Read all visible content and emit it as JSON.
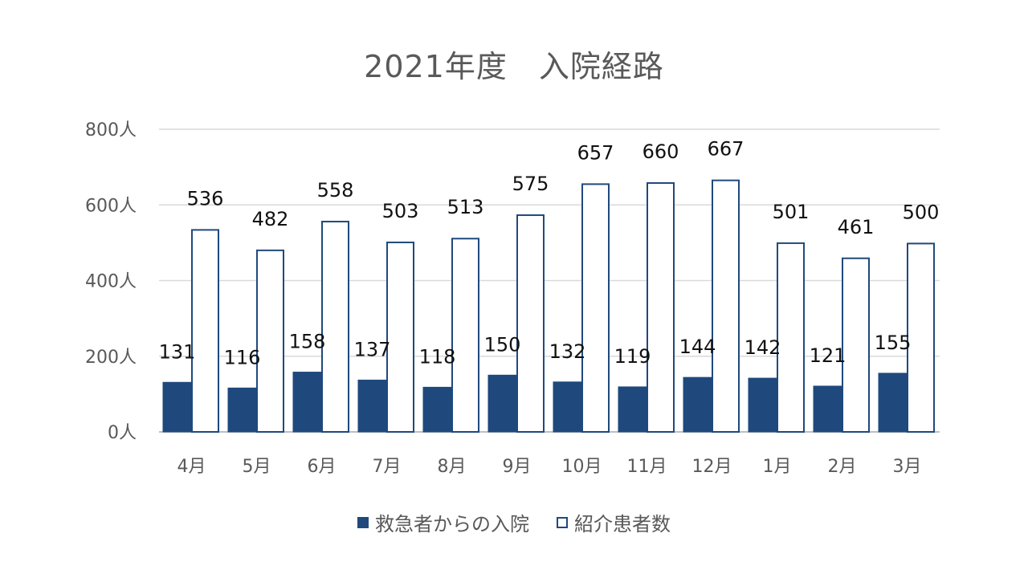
{
  "chart_data": {
    "type": "bar",
    "title": "2021年度　入院経路",
    "categories": [
      "4月",
      "5月",
      "6月",
      "7月",
      "8月",
      "9月",
      "10月",
      "11月",
      "12月",
      "1月",
      "2月",
      "3月"
    ],
    "series": [
      {
        "name": "救急者からの入院",
        "values": [
          131,
          116,
          158,
          137,
          118,
          150,
          132,
          119,
          144,
          142,
          121,
          155
        ],
        "color": "#1f497d",
        "fill": "#1f497d"
      },
      {
        "name": "紹介患者数",
        "values": [
          536,
          482,
          558,
          503,
          513,
          575,
          657,
          660,
          667,
          501,
          461,
          500
        ],
        "color": "#1f497d",
        "fill": "#ffffff"
      }
    ],
    "ylim": [
      0,
      800
    ],
    "yticks": [
      0,
      200,
      400,
      600,
      800
    ],
    "ytick_suffix": "人",
    "grid": true,
    "legend": "bottom"
  }
}
